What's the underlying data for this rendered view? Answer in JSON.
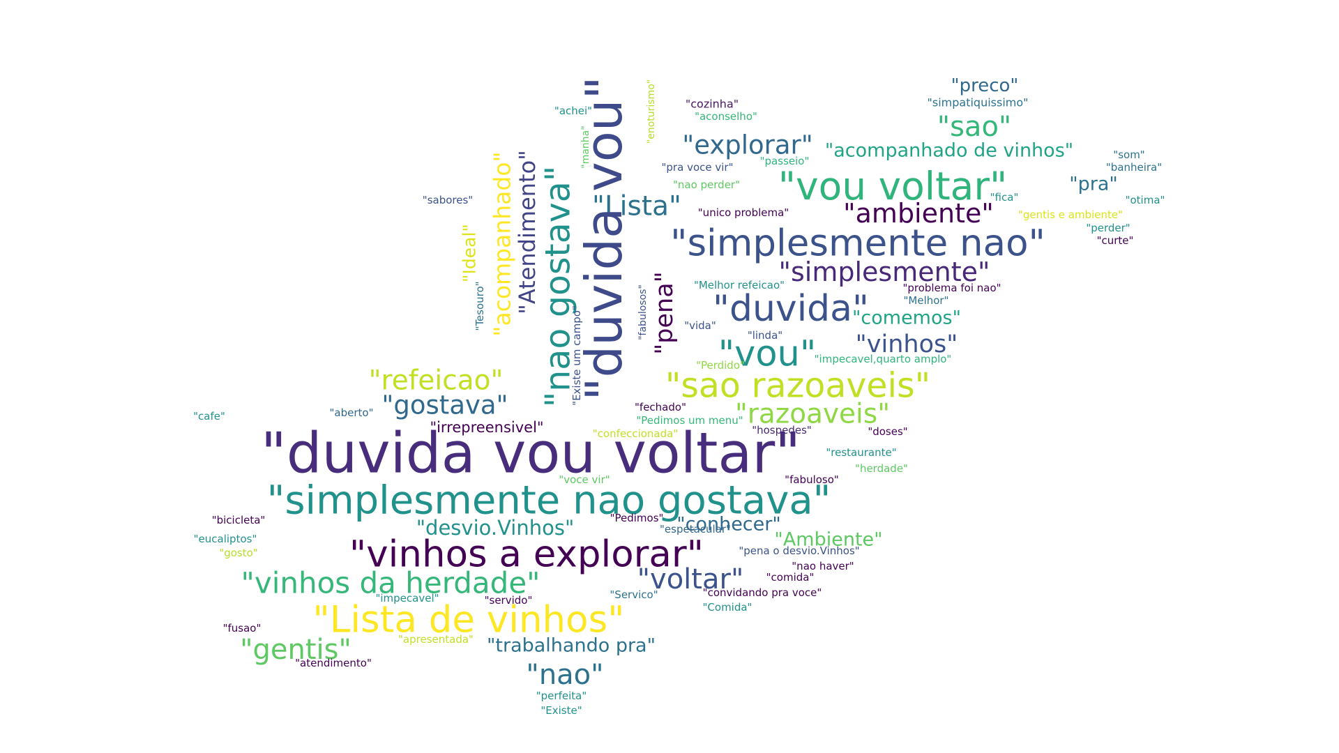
{
  "words": [
    {
      "text": "\"duvida vou voltar\"",
      "color": "#472d7b"
    },
    {
      "text": "\"simplesmente nao gostava\"",
      "color": "#21918c"
    },
    {
      "text": "\"vinhos a explorar\"",
      "color": "#440154"
    },
    {
      "text": "\"Lista de vinhos\"",
      "color": "#fde725"
    },
    {
      "text": "\"vinhos da herdade\"",
      "color": "#35b779"
    },
    {
      "text": "\"voltar\"",
      "color": "#3b528b"
    },
    {
      "text": "\"nao\"",
      "color": "#2c728e"
    },
    {
      "text": "\"gentis\"",
      "color": "#5ec962"
    },
    {
      "text": "\"trabalhando pra\"",
      "color": "#2c728e"
    },
    {
      "text": "\"desvio.Vinhos\"",
      "color": "#21918c"
    },
    {
      "text": "\"conhecer\"",
      "color": "#31688e"
    },
    {
      "text": "\"Ambiente\"",
      "color": "#5ec962"
    },
    {
      "text": "\"refeicao\"",
      "color": "#c2df23"
    },
    {
      "text": "\"gostava\"",
      "color": "#31688e"
    },
    {
      "text": "\"irrepreensivel\"",
      "color": "#440154"
    },
    {
      "text": "\"sao razoaveis\"",
      "color": "#c2df23"
    },
    {
      "text": "\"razoaveis\"",
      "color": "#8fd744"
    },
    {
      "text": "\"vou\"",
      "color": "#21918c"
    },
    {
      "text": "\"vinhos\"",
      "color": "#3b528b"
    },
    {
      "text": "\"duvida\"",
      "color": "#3b528b"
    },
    {
      "text": "\"comemos\"",
      "color": "#20a486"
    },
    {
      "text": "\"simplesmente\"",
      "color": "#482878"
    },
    {
      "text": "\"simplesmente nao\"",
      "color": "#3b528b"
    },
    {
      "text": "\"ambiente\"",
      "color": "#440154"
    },
    {
      "text": "\"vou voltar\"",
      "color": "#2fb47c"
    },
    {
      "text": "\"pra\"",
      "color": "#2c728e"
    },
    {
      "text": "\"explorar\"",
      "color": "#31688e"
    },
    {
      "text": "\"acompanhado de vinhos\"",
      "color": "#20a486"
    },
    {
      "text": "\"sao\"",
      "color": "#35b779"
    },
    {
      "text": "\"preco\"",
      "color": "#31688e"
    },
    {
      "text": "\"simpatiquissimo\"",
      "color": "#2c728e"
    },
    {
      "text": "\"Lista\"",
      "color": "#2c728e"
    },
    {
      "text": "\"duvida vou\"",
      "color": "#3e4a89"
    },
    {
      "text": "\"nao gostava\"",
      "color": "#21918c"
    },
    {
      "text": "\"Atendimento\"",
      "color": "#414487"
    },
    {
      "text": "\"acompanhado\"",
      "color": "#fde725"
    },
    {
      "text": "\"Ideal\"",
      "color": "#dde318"
    },
    {
      "text": "\"Tesouro\"",
      "color": "#2c728e"
    },
    {
      "text": "\"pena\"",
      "color": "#440154"
    },
    {
      "text": "\"Existe um campo\"",
      "color": "#3b528b"
    },
    {
      "text": "\"fabulosos\"",
      "color": "#3b528b"
    },
    {
      "text": "\"manha\"",
      "color": "#5ec962"
    },
    {
      "text": "\"enoturismo\"",
      "color": "#b5de2b"
    },
    {
      "text": "\"cozinha\"",
      "color": "#481467"
    },
    {
      "text": "\"aconselho\"",
      "color": "#35b779"
    },
    {
      "text": "\"achei\"",
      "color": "#21918c"
    },
    {
      "text": "\"pra voce vir\"",
      "color": "#3b528b"
    },
    {
      "text": "\"passeio\"",
      "color": "#2fb47c"
    },
    {
      "text": "\"nao perder\"",
      "color": "#5ec962"
    },
    {
      "text": "\"unico problema\"",
      "color": "#440154"
    },
    {
      "text": "\"sabores\"",
      "color": "#3b528b"
    },
    {
      "text": "\"fica\"",
      "color": "#21918c"
    },
    {
      "text": "\"som\"",
      "color": "#2c728e"
    },
    {
      "text": "\"banheira\"",
      "color": "#2c728e"
    },
    {
      "text": "\"otima\"",
      "color": "#21918c"
    },
    {
      "text": "\"gentis e ambiente\"",
      "color": "#dde318"
    },
    {
      "text": "\"perder\"",
      "color": "#21918c"
    },
    {
      "text": "\"curte\"",
      "color": "#440154"
    },
    {
      "text": "\"Melhor refeicao\"",
      "color": "#21918c"
    },
    {
      "text": "\"problema foi nao\"",
      "color": "#440154"
    },
    {
      "text": "\"Melhor\"",
      "color": "#2c728e"
    },
    {
      "text": "\"vida\"",
      "color": "#3b528b"
    },
    {
      "text": "\"linda\"",
      "color": "#3b528b"
    },
    {
      "text": "\"impecavel,quarto amplo\"",
      "color": "#2fb47c"
    },
    {
      "text": "\"Perdido\"",
      "color": "#8fd744"
    },
    {
      "text": "\"fechado\"",
      "color": "#440154"
    },
    {
      "text": "\"Pedimos um menu\"",
      "color": "#35b779"
    },
    {
      "text": "\"confeccionada\"",
      "color": "#c2df23"
    },
    {
      "text": "\"hospedes\"",
      "color": "#482878"
    },
    {
      "text": "\"doses\"",
      "color": "#440154"
    },
    {
      "text": "\"cafe\"",
      "color": "#21918c"
    },
    {
      "text": "\"aberto\"",
      "color": "#31688e"
    },
    {
      "text": "\"restaurante\"",
      "color": "#21918c"
    },
    {
      "text": "\"herdade\"",
      "color": "#5ec962"
    },
    {
      "text": "\"voce vir\"",
      "color": "#5ec962"
    },
    {
      "text": "\"fabuloso\"",
      "color": "#440154"
    },
    {
      "text": "\"bicicleta\"",
      "color": "#440154"
    },
    {
      "text": "\"Pedimos\"",
      "color": "#440154"
    },
    {
      "text": "\"espetacular\"",
      "color": "#31688e"
    },
    {
      "text": "\"eucaliptos\"",
      "color": "#21918c"
    },
    {
      "text": "\"gosto\"",
      "color": "#b5de2b"
    },
    {
      "text": "\"pena o desvio.Vinhos\"",
      "color": "#3b528b"
    },
    {
      "text": "\"nao haver\"",
      "color": "#440154"
    },
    {
      "text": "\"comida\"",
      "color": "#440154"
    },
    {
      "text": "\"impecavel\"",
      "color": "#21918c"
    },
    {
      "text": "\"servido\"",
      "color": "#440154"
    },
    {
      "text": "\"Servico\"",
      "color": "#2c728e"
    },
    {
      "text": "\"convidando pra voce\"",
      "color": "#440154"
    },
    {
      "text": "\"Comida\"",
      "color": "#21918c"
    },
    {
      "text": "\"fusao\"",
      "color": "#440154"
    },
    {
      "text": "\"apresentada\"",
      "color": "#c2df23"
    },
    {
      "text": "\"atendimento\"",
      "color": "#440154"
    },
    {
      "text": "\"perfeita\"",
      "color": "#21918c"
    },
    {
      "text": "\"Existe\"",
      "color": "#21918c"
    }
  ]
}
